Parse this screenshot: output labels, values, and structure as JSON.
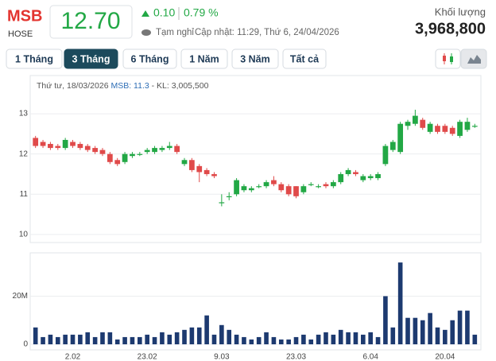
{
  "header": {
    "symbol": "MSB",
    "exchange": "HOSE",
    "price": "12.70",
    "change": "0.10",
    "change_pct": "0.79 %",
    "status": "Tạm nghỉ",
    "updated": "Cập nhật: 11:29, Thứ 6, 24/04/2026",
    "volume_label": "Khối lượng",
    "volume": "3,968,800"
  },
  "ranges": [
    "1 Tháng",
    "3 Tháng",
    "6 Tháng",
    "1 Năm",
    "3 Năm",
    "Tất cả"
  ],
  "active_range": 1,
  "tooltip": {
    "date": "Thứ tư, 18/03/2026",
    "price": "MSB: 11.3",
    "volume": "- KL: 3,005,500"
  },
  "chart_data": {
    "type": "candlestick",
    "categories": [
      null,
      null,
      null,
      null,
      null,
      "2.02",
      null,
      null,
      null,
      null,
      null,
      null,
      null,
      null,
      null,
      "23.02",
      null,
      null,
      null,
      null,
      null,
      null,
      null,
      null,
      null,
      "9.03",
      null,
      null,
      null,
      null,
      null,
      null,
      null,
      null,
      null,
      "23.03",
      null,
      null,
      null,
      null,
      null,
      null,
      null,
      null,
      null,
      "6.04",
      null,
      null,
      null,
      null,
      null,
      null,
      null,
      null,
      null,
      "20.04",
      null,
      null,
      null,
      null
    ],
    "open": [
      12.4,
      12.3,
      12.25,
      12.2,
      12.15,
      12.3,
      12.25,
      12.2,
      12.15,
      12.1,
      12.0,
      11.85,
      11.8,
      11.95,
      12.0,
      12.05,
      12.05,
      12.1,
      12.15,
      12.2,
      11.75,
      11.85,
      11.7,
      11.6,
      11.5,
      10.8,
      10.95,
      11.0,
      11.1,
      11.1,
      11.2,
      11.2,
      11.35,
      11.25,
      11.2,
      11.2,
      11.05,
      11.25,
      11.2,
      11.25,
      11.2,
      11.3,
      11.5,
      11.55,
      11.35,
      11.4,
      11.4,
      11.75,
      12.1,
      12.05,
      12.7,
      12.75,
      12.85,
      12.55,
      12.7,
      12.7,
      12.65,
      12.45,
      12.6,
      12.7
    ],
    "high": [
      12.45,
      12.35,
      12.3,
      12.25,
      12.4,
      12.35,
      12.3,
      12.25,
      12.2,
      12.15,
      12.05,
      11.9,
      12.05,
      12.05,
      12.05,
      12.15,
      12.2,
      12.2,
      12.3,
      12.25,
      11.9,
      11.9,
      11.75,
      11.65,
      11.55,
      11.0,
      11.05,
      11.4,
      11.25,
      11.2,
      11.25,
      11.35,
      11.45,
      11.3,
      11.25,
      11.2,
      11.25,
      11.3,
      11.25,
      11.3,
      11.35,
      11.55,
      11.65,
      11.6,
      11.5,
      11.5,
      11.55,
      12.25,
      12.35,
      12.8,
      12.85,
      13.1,
      12.9,
      12.8,
      12.75,
      12.75,
      12.7,
      12.85,
      12.9,
      12.75
    ],
    "low": [
      12.15,
      12.15,
      12.1,
      12.1,
      12.1,
      12.15,
      12.1,
      12.05,
      12.0,
      11.95,
      11.75,
      11.7,
      11.75,
      11.9,
      11.95,
      12.0,
      12.0,
      12.05,
      12.1,
      12.0,
      11.7,
      11.55,
      11.3,
      11.45,
      11.4,
      10.7,
      10.85,
      10.95,
      11.05,
      11.05,
      11.15,
      11.15,
      11.2,
      11.05,
      10.95,
      10.9,
      11.0,
      11.2,
      11.15,
      11.15,
      11.15,
      11.25,
      11.45,
      11.45,
      11.3,
      11.35,
      11.35,
      11.7,
      12.05,
      12.0,
      12.6,
      12.7,
      12.6,
      12.5,
      12.5,
      12.5,
      12.45,
      12.4,
      12.55,
      12.65
    ],
    "close": [
      12.2,
      12.2,
      12.15,
      12.15,
      12.35,
      12.2,
      12.15,
      12.1,
      12.05,
      12.0,
      11.8,
      11.75,
      12.0,
      12.0,
      12.0,
      12.1,
      12.15,
      12.15,
      12.2,
      12.05,
      11.85,
      11.6,
      11.55,
      11.5,
      11.45,
      10.8,
      10.95,
      11.35,
      11.2,
      11.15,
      11.2,
      11.3,
      11.25,
      11.1,
      11.0,
      10.95,
      11.2,
      11.25,
      11.2,
      11.2,
      11.3,
      11.5,
      11.6,
      11.5,
      11.45,
      11.45,
      11.5,
      12.2,
      12.3,
      12.75,
      12.8,
      12.95,
      12.65,
      12.75,
      12.55,
      12.55,
      12.5,
      12.8,
      12.8,
      12.7
    ],
    "volume": [
      7000000,
      3000000,
      4000000,
      3000000,
      4000000,
      4000000,
      4000000,
      5000000,
      3000000,
      5000000,
      5000000,
      2000000,
      3000000,
      3000000,
      3000000,
      4000000,
      3000000,
      5000000,
      4000000,
      5000000,
      6000000,
      7000000,
      7000000,
      12000000,
      4000000,
      8000000,
      6000000,
      4000000,
      3000000,
      2000000,
      3000000,
      5000000,
      3000000,
      2000000,
      2000000,
      3000000,
      4000000,
      2000000,
      4000000,
      5000000,
      4000000,
      6000000,
      5000000,
      5000000,
      4000000,
      5000000,
      3000000,
      20000000,
      7000000,
      34000000,
      11000000,
      11000000,
      10000000,
      13000000,
      7000000,
      6000000,
      10000000,
      14000000,
      14000000,
      4000000
    ],
    "up_color": "#22a845",
    "down_color": "#e04a4a",
    "volume_color": "#1d3a70",
    "ylim": [
      9.8,
      13.95
    ],
    "yticks": [
      10,
      11,
      12,
      13
    ],
    "grid": true,
    "volume_ylim": [
      0,
      38000000
    ],
    "volume_yticks": [
      0,
      {
        "value": 20000000,
        "label": "20M"
      }
    ]
  }
}
